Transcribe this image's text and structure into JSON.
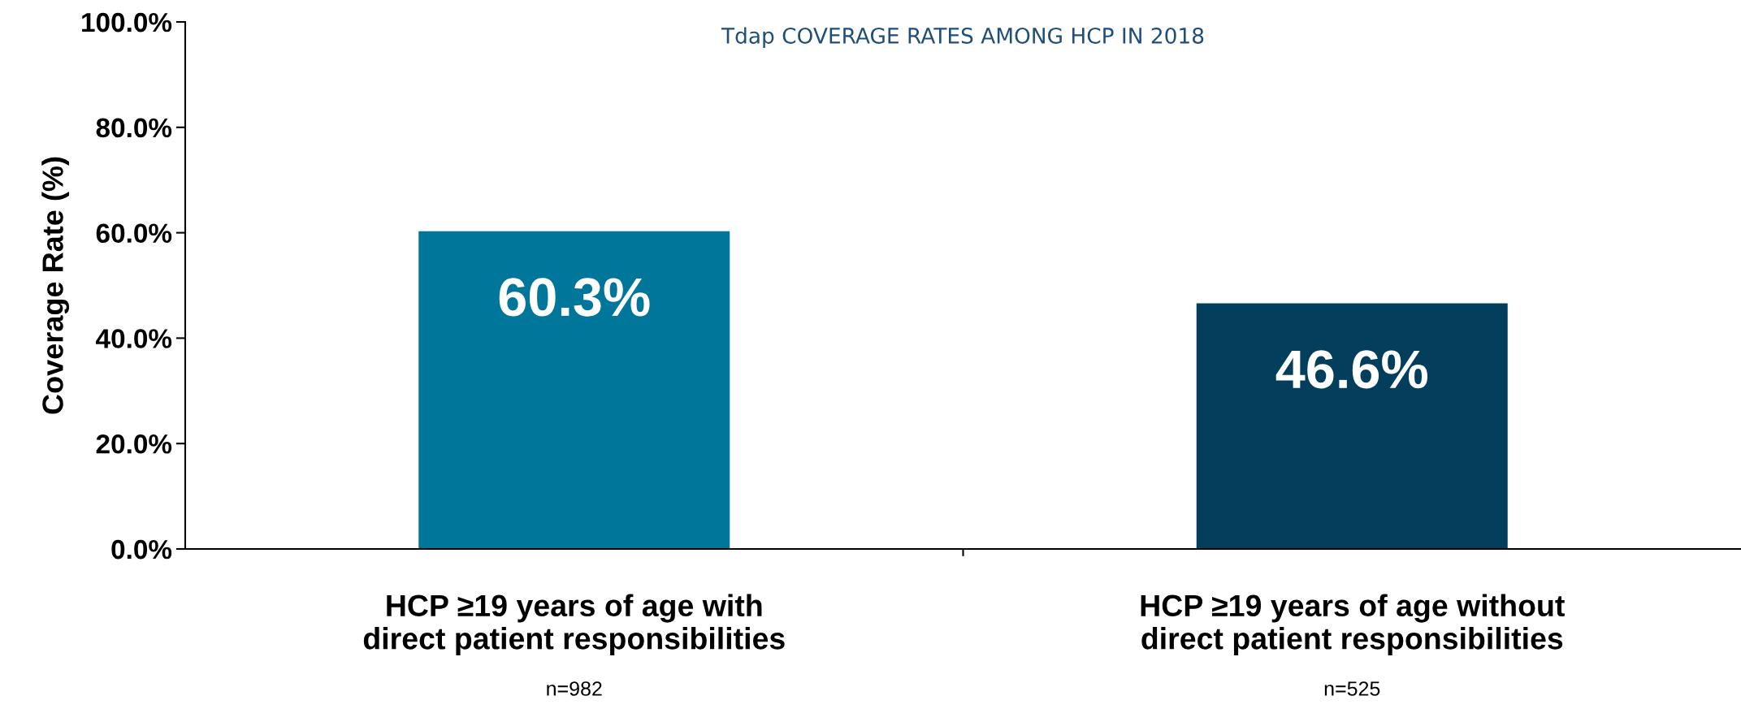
{
  "chart_data": {
    "type": "bar",
    "title": "Tdap COVERAGE RATES AMONG HCP IN 2018",
    "ylabel": "Coverage Rate (%)",
    "categories": [
      "HCP ≥19 years of age with\ndirect patient responsibilities",
      "HCP ≥19 years of age without\ndirect patient responsibilities"
    ],
    "values": [
      60.3,
      46.6
    ],
    "colors": [
      "#00769b",
      "#033f5d"
    ],
    "value_labels": [
      "60.3%",
      "46.6%"
    ],
    "annotations": [
      "n=982",
      "n=525"
    ],
    "ylim": [
      0,
      100
    ],
    "yticks": [
      {
        "value": 0,
        "label": "0.0%"
      },
      {
        "value": 20,
        "label": "20.0%"
      },
      {
        "value": 40,
        "label": "40.0%"
      },
      {
        "value": 60,
        "label": "60.0%"
      },
      {
        "value": 80,
        "label": "80.0%"
      },
      {
        "value": 100,
        "label": "100.0%"
      }
    ],
    "grid": false,
    "legend": false
  }
}
